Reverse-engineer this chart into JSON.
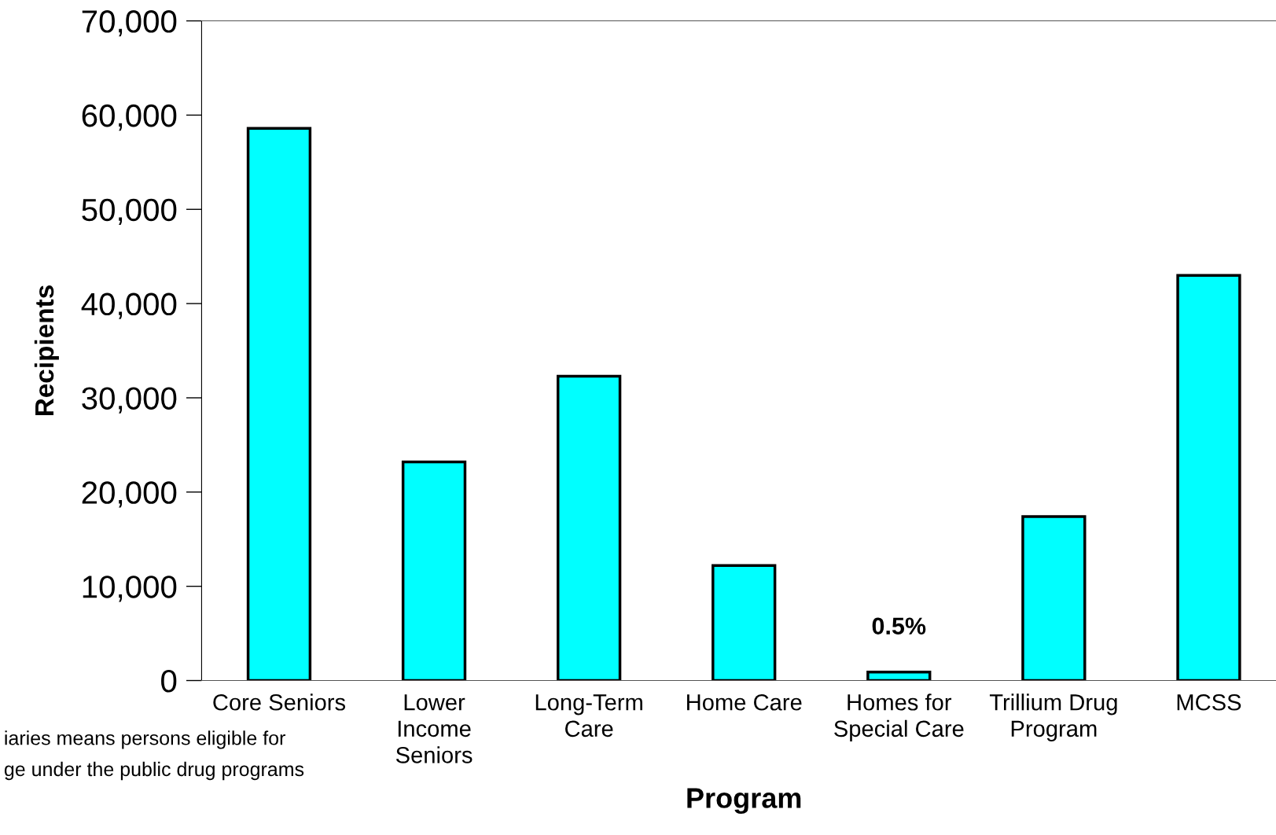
{
  "chart_data": {
    "type": "bar",
    "xlabel": "Program",
    "ylabel": "Recipients",
    "categories": [
      "Core Seniors",
      "Lower\nIncome\nSeniors",
      "Long-Term\nCare",
      "Home Care",
      "Homes for\nSpecial Care",
      "Trillium Drug\nProgram",
      "MCSS"
    ],
    "values": [
      58600,
      23200,
      32300,
      12200,
      900,
      17400,
      43000
    ],
    "color": "#00ffff",
    "ylim": [
      0,
      70000
    ],
    "yticks": [
      {
        "value": 0,
        "label": "0"
      },
      {
        "value": 10000,
        "label": "10,000"
      },
      {
        "value": 20000,
        "label": "20,000"
      },
      {
        "value": 30000,
        "label": "30,000"
      },
      {
        "value": 40000,
        "label": "40,000"
      },
      {
        "value": 50000,
        "label": "50,000"
      },
      {
        "value": 60000,
        "label": "60,000"
      },
      {
        "value": 70000,
        "label": "70,000"
      }
    ],
    "grid": false,
    "legend": false,
    "annotations": [
      {
        "text": "0.5%",
        "x": "Homes for\nSpecial Care",
        "y": 900
      },
      "iaries means persons eligible for\nge under the public drug programs"
    ]
  }
}
